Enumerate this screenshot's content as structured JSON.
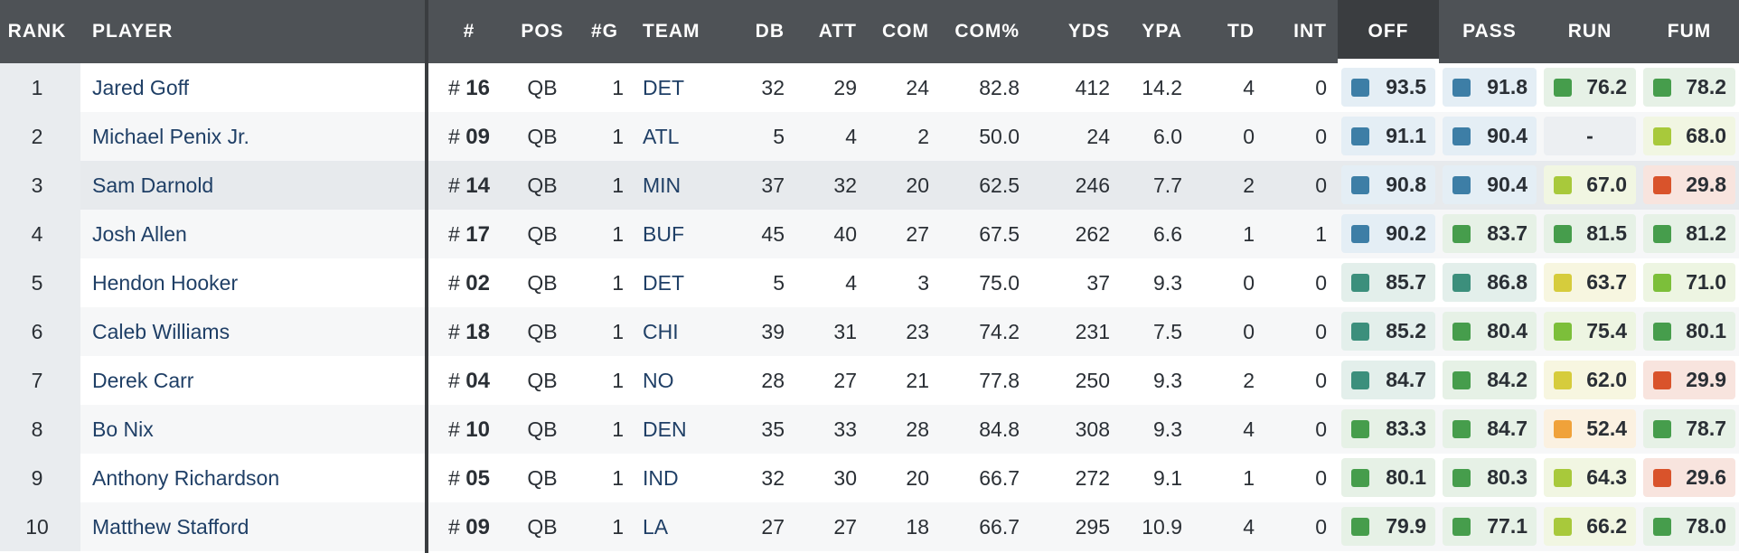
{
  "columns": [
    {
      "key": "rank",
      "label": "RANK"
    },
    {
      "key": "player",
      "label": "PLAYER"
    },
    {
      "key": "num",
      "label": "#"
    },
    {
      "key": "pos",
      "label": "POS"
    },
    {
      "key": "g",
      "label": "#G"
    },
    {
      "key": "team",
      "label": "TEAM"
    },
    {
      "key": "db",
      "label": "DB"
    },
    {
      "key": "att",
      "label": "ATT"
    },
    {
      "key": "com",
      "label": "COM"
    },
    {
      "key": "compct",
      "label": "COM%"
    },
    {
      "key": "yds",
      "label": "YDS"
    },
    {
      "key": "ypa",
      "label": "YPA"
    },
    {
      "key": "td",
      "label": "TD"
    },
    {
      "key": "int",
      "label": "INT"
    },
    {
      "key": "off",
      "label": "OFF"
    },
    {
      "key": "pass",
      "label": "PASS"
    },
    {
      "key": "run",
      "label": "RUN"
    },
    {
      "key": "fum",
      "label": "FUM"
    }
  ],
  "sorted_column": "OFF",
  "jersey_prefix": "#",
  "grade_colors": {
    "elite": "#3d7ea6",
    "high": "#3c8f7c",
    "good": "#469d4c",
    "above_avg": "#7cbf3a",
    "avg": "#a8c93b",
    "below_avg": "#d6cc3c",
    "poor": "#f0a23a",
    "bad": "#d9532b"
  },
  "grade_backgrounds": {
    "elite": "#e4eef5",
    "high": "#e3efeb",
    "good": "#e6f1e6",
    "above_avg": "#edf5e2",
    "avg": "#f1f6e2",
    "below_avg": "#f7f6e0",
    "poor": "#fbf1e1",
    "bad": "#f8e4de",
    "none": "#eceff2"
  },
  "rows": [
    {
      "rank": "1",
      "player": "Jared Goff",
      "num": "16",
      "pos": "QB",
      "g": "1",
      "team": "DET",
      "db": "32",
      "att": "29",
      "com": "24",
      "compct": "82.8",
      "yds": "412",
      "ypa": "14.2",
      "td": "4",
      "int": "0",
      "grades": {
        "off": {
          "v": "93.5",
          "t": "elite"
        },
        "pass": {
          "v": "91.8",
          "t": "elite"
        },
        "run": {
          "v": "76.2",
          "t": "good"
        },
        "fum": {
          "v": "78.2",
          "t": "good"
        }
      }
    },
    {
      "rank": "2",
      "player": "Michael Penix Jr.",
      "num": "09",
      "pos": "QB",
      "g": "1",
      "team": "ATL",
      "db": "5",
      "att": "4",
      "com": "2",
      "compct": "50.0",
      "yds": "24",
      "ypa": "6.0",
      "td": "0",
      "int": "0",
      "grades": {
        "off": {
          "v": "91.1",
          "t": "elite"
        },
        "pass": {
          "v": "90.4",
          "t": "elite"
        },
        "run": {
          "v": "-",
          "t": "none"
        },
        "fum": {
          "v": "68.0",
          "t": "avg"
        }
      }
    },
    {
      "rank": "3",
      "player": "Sam Darnold",
      "num": "14",
      "pos": "QB",
      "g": "1",
      "team": "MIN",
      "db": "37",
      "att": "32",
      "com": "20",
      "compct": "62.5",
      "yds": "246",
      "ypa": "7.7",
      "td": "2",
      "int": "0",
      "grades": {
        "off": {
          "v": "90.8",
          "t": "elite"
        },
        "pass": {
          "v": "90.4",
          "t": "elite"
        },
        "run": {
          "v": "67.0",
          "t": "avg"
        },
        "fum": {
          "v": "29.8",
          "t": "bad"
        }
      }
    },
    {
      "rank": "4",
      "player": "Josh Allen",
      "num": "17",
      "pos": "QB",
      "g": "1",
      "team": "BUF",
      "db": "45",
      "att": "40",
      "com": "27",
      "compct": "67.5",
      "yds": "262",
      "ypa": "6.6",
      "td": "1",
      "int": "1",
      "grades": {
        "off": {
          "v": "90.2",
          "t": "elite"
        },
        "pass": {
          "v": "83.7",
          "t": "good"
        },
        "run": {
          "v": "81.5",
          "t": "good"
        },
        "fum": {
          "v": "81.2",
          "t": "good"
        }
      }
    },
    {
      "rank": "5",
      "player": "Hendon Hooker",
      "num": "02",
      "pos": "QB",
      "g": "1",
      "team": "DET",
      "db": "5",
      "att": "4",
      "com": "3",
      "compct": "75.0",
      "yds": "37",
      "ypa": "9.3",
      "td": "0",
      "int": "0",
      "grades": {
        "off": {
          "v": "85.7",
          "t": "high"
        },
        "pass": {
          "v": "86.8",
          "t": "high"
        },
        "run": {
          "v": "63.7",
          "t": "below_avg"
        },
        "fum": {
          "v": "71.0",
          "t": "above_avg"
        }
      }
    },
    {
      "rank": "6",
      "player": "Caleb Williams",
      "num": "18",
      "pos": "QB",
      "g": "1",
      "team": "CHI",
      "db": "39",
      "att": "31",
      "com": "23",
      "compct": "74.2",
      "yds": "231",
      "ypa": "7.5",
      "td": "0",
      "int": "0",
      "grades": {
        "off": {
          "v": "85.2",
          "t": "high"
        },
        "pass": {
          "v": "80.4",
          "t": "good"
        },
        "run": {
          "v": "75.4",
          "t": "above_avg"
        },
        "fum": {
          "v": "80.1",
          "t": "good"
        }
      }
    },
    {
      "rank": "7",
      "player": "Derek Carr",
      "num": "04",
      "pos": "QB",
      "g": "1",
      "team": "NO",
      "db": "28",
      "att": "27",
      "com": "21",
      "compct": "77.8",
      "yds": "250",
      "ypa": "9.3",
      "td": "2",
      "int": "0",
      "grades": {
        "off": {
          "v": "84.7",
          "t": "high"
        },
        "pass": {
          "v": "84.2",
          "t": "good"
        },
        "run": {
          "v": "62.0",
          "t": "below_avg"
        },
        "fum": {
          "v": "29.9",
          "t": "bad"
        }
      }
    },
    {
      "rank": "8",
      "player": "Bo Nix",
      "num": "10",
      "pos": "QB",
      "g": "1",
      "team": "DEN",
      "db": "35",
      "att": "33",
      "com": "28",
      "compct": "84.8",
      "yds": "308",
      "ypa": "9.3",
      "td": "4",
      "int": "0",
      "grades": {
        "off": {
          "v": "83.3",
          "t": "good"
        },
        "pass": {
          "v": "84.7",
          "t": "good"
        },
        "run": {
          "v": "52.4",
          "t": "poor"
        },
        "fum": {
          "v": "78.7",
          "t": "good"
        }
      }
    },
    {
      "rank": "9",
      "player": "Anthony Richardson",
      "num": "05",
      "pos": "QB",
      "g": "1",
      "team": "IND",
      "db": "32",
      "att": "30",
      "com": "20",
      "compct": "66.7",
      "yds": "272",
      "ypa": "9.1",
      "td": "1",
      "int": "0",
      "grades": {
        "off": {
          "v": "80.1",
          "t": "good"
        },
        "pass": {
          "v": "80.3",
          "t": "good"
        },
        "run": {
          "v": "64.3",
          "t": "avg"
        },
        "fum": {
          "v": "29.6",
          "t": "bad"
        }
      }
    },
    {
      "rank": "10",
      "player": "Matthew Stafford",
      "num": "09",
      "pos": "QB",
      "g": "1",
      "team": "LA",
      "db": "27",
      "att": "27",
      "com": "18",
      "compct": "66.7",
      "yds": "295",
      "ypa": "10.9",
      "td": "4",
      "int": "0",
      "grades": {
        "off": {
          "v": "79.9",
          "t": "good"
        },
        "pass": {
          "v": "77.1",
          "t": "good"
        },
        "run": {
          "v": "66.2",
          "t": "avg"
        },
        "fum": {
          "v": "78.0",
          "t": "good"
        }
      }
    }
  ]
}
